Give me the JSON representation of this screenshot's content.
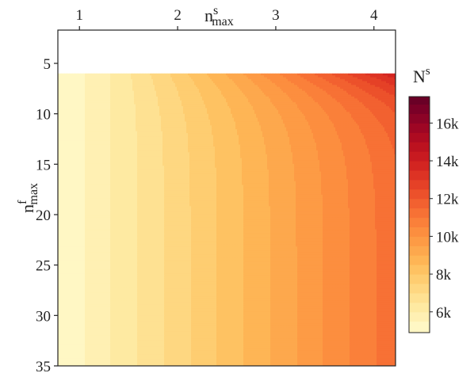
{
  "chart_data": {
    "type": "heatmap",
    "subtype": "filled-contour",
    "x": {
      "label_base": "n",
      "label_sup": "s",
      "label_sub": "max",
      "range": [
        0.78,
        4.22
      ],
      "ticks": [
        1,
        2,
        3,
        4
      ],
      "tick_labels": [
        "1",
        "2",
        "3",
        "4"
      ],
      "tick_side": "top"
    },
    "y": {
      "label_base": "n",
      "label_sup": "f",
      "label_sub": "max",
      "range": [
        1.7,
        35
      ],
      "inverted": true,
      "ticks": [
        5,
        10,
        15,
        20,
        25,
        30,
        35
      ],
      "tick_labels": [
        "5",
        "10",
        "15",
        "20",
        "25",
        "30",
        "35"
      ],
      "data_starts_at": 6
    },
    "colorbar": {
      "title_base": "N",
      "title_sup": "s",
      "range": [
        4900,
        17400
      ],
      "ticks": [
        6000,
        8000,
        10000,
        12000,
        14000,
        16000
      ],
      "tick_labels": [
        "6k",
        "8k",
        "10k",
        "12k",
        "14k",
        "16k"
      ],
      "levels": [
        4900,
        5500,
        6000,
        6500,
        7000,
        7500,
        8000,
        8500,
        9000,
        9500,
        10000,
        10500,
        11000,
        11500,
        12000,
        12500,
        13000,
        13500,
        14000,
        14500,
        15000,
        15500,
        16000,
        16500,
        17000,
        17400
      ],
      "colors": [
        "#fff7c4",
        "#fff0b3",
        "#feeaa2",
        "#fee192",
        "#fed781",
        "#fecd71",
        "#fec262",
        "#feb555",
        "#fda84d",
        "#fd9b45",
        "#fc8e3f",
        "#fa803a",
        "#f77135",
        "#f26130",
        "#ec512b",
        "#e54127",
        "#dd3324",
        "#d32521",
        "#c81a20",
        "#bc121f",
        "#ae0b21",
        "#9e0624",
        "#8c0326",
        "#7b0027",
        "#6a0026"
      ]
    }
  }
}
